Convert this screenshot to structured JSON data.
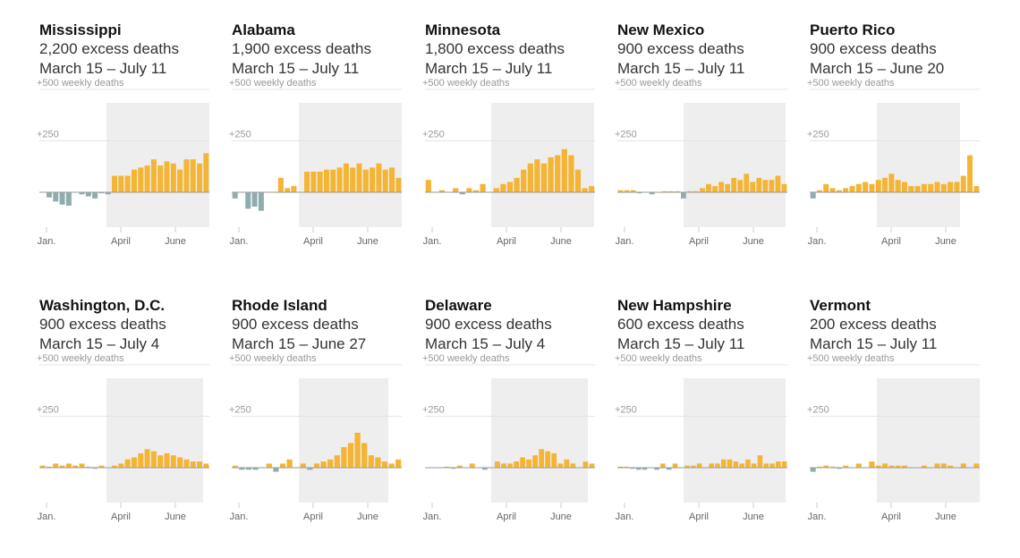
{
  "colors": {
    "excess": "#f4b434",
    "deficit": "#8fadae",
    "shade": "#eeeeee",
    "grid": "#e4e4e4",
    "baseline": "#999999"
  },
  "chart_data": [
    {
      "type": "bar",
      "title": "Mississippi",
      "summary": "2,200 excess deaths",
      "period": "March 15 – July 11",
      "ylim": [
        -100,
        500
      ],
      "yticks": [
        "+500 weekly deaths",
        "+250"
      ],
      "xticks": [
        "Jan.",
        "April",
        "June"
      ],
      "values": [
        0,
        -25,
        -45,
        -60,
        -65,
        0,
        -10,
        -20,
        -30,
        -5,
        -10,
        80,
        80,
        80,
        110,
        120,
        130,
        160,
        130,
        150,
        140,
        110,
        160,
        160,
        140,
        190
      ]
    },
    {
      "type": "bar",
      "title": "Alabama",
      "summary": "1,900 excess deaths",
      "period": "March 15 – July 11",
      "ylim": [
        -100,
        500
      ],
      "yticks": [
        "+500 weekly deaths",
        "+250"
      ],
      "xticks": [
        "Jan.",
        "April",
        "June"
      ],
      "values": [
        -30,
        0,
        -80,
        -70,
        -90,
        0,
        0,
        70,
        20,
        30,
        0,
        100,
        100,
        100,
        110,
        110,
        120,
        140,
        120,
        140,
        110,
        120,
        140,
        110,
        120,
        70
      ]
    },
    {
      "type": "bar",
      "title": "Minnesota",
      "summary": "1,800 excess deaths",
      "period": "March 15 – July 11",
      "ylim": [
        -100,
        500
      ],
      "yticks": [
        "+500 weekly deaths",
        "+250"
      ],
      "xticks": [
        "Jan.",
        "April",
        "June"
      ],
      "values": [
        60,
        0,
        10,
        0,
        20,
        -10,
        20,
        10,
        40,
        0,
        20,
        40,
        50,
        70,
        110,
        140,
        160,
        140,
        170,
        180,
        210,
        180,
        110,
        20,
        30
      ]
    },
    {
      "type": "bar",
      "title": "New Mexico",
      "summary": "900 excess deaths",
      "period": "March 15 – July 11",
      "ylim": [
        -100,
        500
      ],
      "yticks": [
        "+500 weekly deaths",
        "+250"
      ],
      "xticks": [
        "Jan.",
        "April",
        "June"
      ],
      "values": [
        10,
        10,
        10,
        -5,
        0,
        -10,
        0,
        5,
        5,
        5,
        -30,
        5,
        5,
        20,
        40,
        30,
        50,
        40,
        70,
        60,
        90,
        50,
        70,
        60,
        60,
        80,
        40
      ]
    },
    {
      "type": "bar",
      "title": "Puerto Rico",
      "summary": "900 excess deaths",
      "period": "March 15 – June 20",
      "ylim": [
        -100,
        500
      ],
      "yticks": [
        "+500 weekly deaths",
        "+250"
      ],
      "xticks": [
        "Jan.",
        "April",
        "June"
      ],
      "values": [
        -30,
        10,
        40,
        20,
        10,
        20,
        30,
        40,
        50,
        40,
        60,
        70,
        90,
        60,
        50,
        30,
        30,
        40,
        40,
        50,
        40,
        50,
        50,
        80,
        180,
        30
      ]
    },
    {
      "type": "bar",
      "title": "Washington, D.C.",
      "summary": "900 excess deaths",
      "period": "March 15 – July 4",
      "ylim": [
        -100,
        500
      ],
      "yticks": [
        "+500 weekly deaths",
        "+250"
      ],
      "xticks": [
        "Jan.",
        "April",
        "June"
      ],
      "values": [
        10,
        5,
        20,
        10,
        20,
        10,
        20,
        5,
        -5,
        10,
        0,
        10,
        20,
        40,
        50,
        70,
        90,
        80,
        60,
        70,
        60,
        50,
        40,
        30,
        30,
        20
      ]
    },
    {
      "type": "bar",
      "title": "Rhode Island",
      "summary": "900 excess deaths",
      "period": "March 15 – June 27",
      "ylim": [
        -100,
        500
      ],
      "yticks": [
        "+500 weekly deaths",
        "+250"
      ],
      "xticks": [
        "Jan.",
        "April",
        "June"
      ],
      "values": [
        10,
        -10,
        -10,
        -10,
        0,
        20,
        -20,
        20,
        40,
        0,
        20,
        -10,
        20,
        30,
        40,
        60,
        100,
        120,
        170,
        120,
        60,
        50,
        30,
        20,
        40
      ]
    },
    {
      "type": "bar",
      "title": "Delaware",
      "summary": "900 excess deaths",
      "period": "March 15 – July 4",
      "ylim": [
        -100,
        500
      ],
      "yticks": [
        "+500 weekly deaths",
        "+250"
      ],
      "xticks": [
        "Jan.",
        "April",
        "June"
      ],
      "values": [
        0,
        0,
        0,
        5,
        -5,
        10,
        0,
        20,
        0,
        -10,
        0,
        30,
        20,
        20,
        30,
        50,
        40,
        60,
        90,
        80,
        70,
        20,
        40,
        20,
        0,
        30,
        20
      ]
    },
    {
      "type": "bar",
      "title": "New Hampshire",
      "summary": "600 excess deaths",
      "period": "March 15 – July 11",
      "ylim": [
        -100,
        500
      ],
      "yticks": [
        "+500 weekly deaths",
        "+250"
      ],
      "xticks": [
        "Jan.",
        "April",
        "June"
      ],
      "values": [
        5,
        5,
        -5,
        -10,
        -10,
        0,
        -10,
        20,
        -10,
        20,
        0,
        10,
        10,
        20,
        0,
        20,
        20,
        40,
        40,
        30,
        20,
        40,
        20,
        60,
        20,
        20,
        30,
        30
      ]
    },
    {
      "type": "bar",
      "title": "Vermont",
      "summary": "200 excess deaths",
      "period": "March 15 – July 11",
      "ylim": [
        -100,
        500
      ],
      "yticks": [
        "+500 weekly deaths",
        "+250"
      ],
      "xticks": [
        "Jan.",
        "April",
        "June"
      ],
      "values": [
        -20,
        5,
        10,
        5,
        -5,
        10,
        0,
        20,
        0,
        30,
        10,
        20,
        10,
        10,
        10,
        0,
        0,
        10,
        0,
        20,
        20,
        10,
        0,
        20,
        0,
        20
      ]
    }
  ]
}
